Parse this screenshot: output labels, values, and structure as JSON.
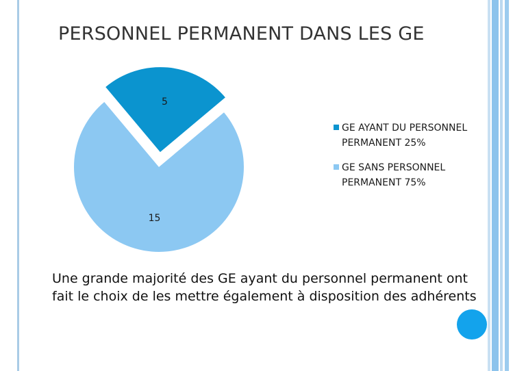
{
  "slide": {
    "title": "PERSONNEL PERMANENT DANS LES GE",
    "caption": "Une grande majorité des GE ayant du personnel permanent ont fait le choix de les mettre également  à disposition des adhérents"
  },
  "colors": {
    "accent_dark": "#0b94cf",
    "accent_light": "#8cc8f2",
    "dot": "#13a3ec"
  },
  "chart_data": {
    "type": "pie",
    "slices": [
      {
        "label": "GE AYANT DU PERSONNEL PERMANENT 25%",
        "value": 5,
        "value_label": "5",
        "color": "#0b94cf",
        "exploded": true
      },
      {
        "label": "GE SANS PERSONNEL PERMANENT 75%",
        "value": 15,
        "value_label": "15",
        "color": "#8cc8f2",
        "exploded": false
      }
    ],
    "legend_placement": "right"
  }
}
